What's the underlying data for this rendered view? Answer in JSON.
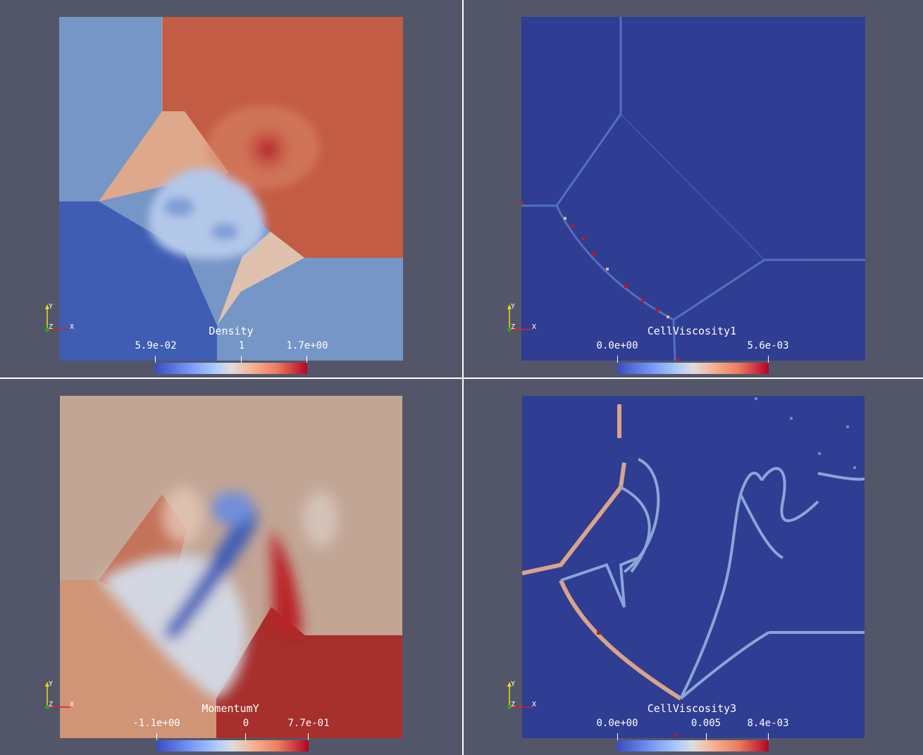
{
  "panels": [
    {
      "field": "Density",
      "labels": [
        "5.9e-02",
        "1",
        "1.7e+00"
      ]
    },
    {
      "field": "CellViscosity1",
      "labels": [
        "0.0e+00",
        "5.6e-03"
      ]
    },
    {
      "field": "MomentumY",
      "labels": [
        "-1.1e+00",
        "0",
        "7.7e-01"
      ]
    },
    {
      "field": "CellViscosity3",
      "labels": [
        "0.0e+00",
        "0.005",
        "8.4e-03"
      ]
    }
  ],
  "axes": {
    "y": "Y",
    "z": "Z",
    "x": "X"
  },
  "colors": {
    "background": "#535669",
    "map_low": "#3b4cc0",
    "map_mid": "#dddddd",
    "map_high": "#b40426"
  }
}
